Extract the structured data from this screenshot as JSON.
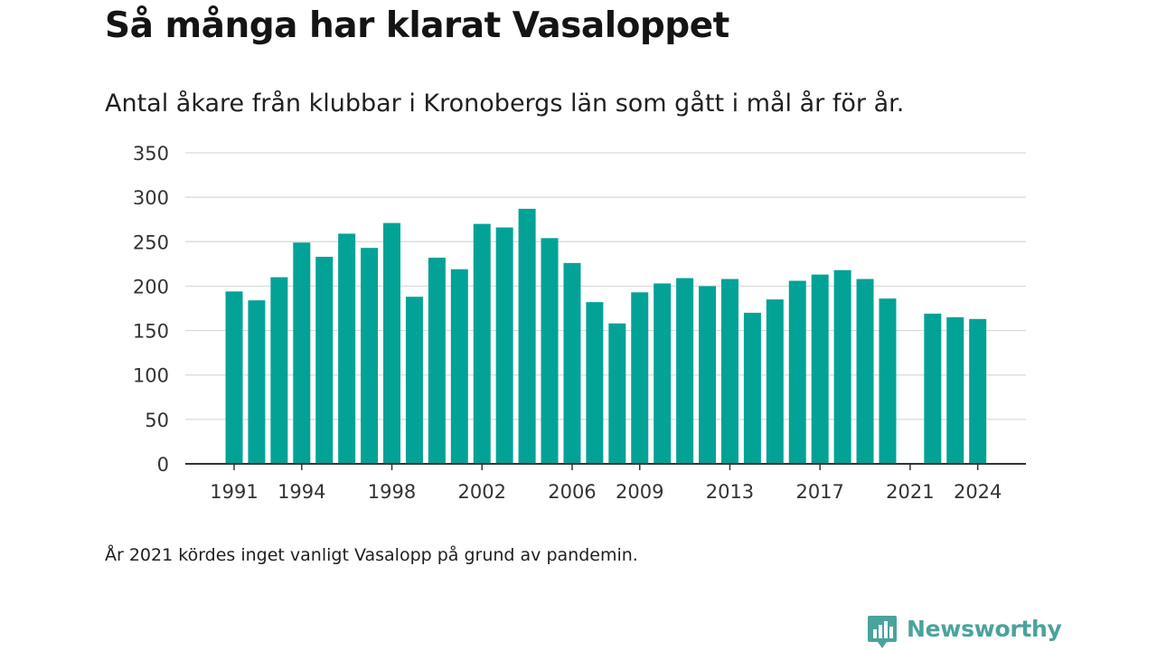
{
  "header": {
    "title": "Så många har klarat Vasaloppet",
    "subtitle": "Antal åkare från klubbar i Kronobergs län som gått i mål år för år."
  },
  "footer": {
    "note": "År 2021 kördes inget vanligt Vasalopp på grund av pandemin.",
    "brand": "Newsworthy"
  },
  "colors": {
    "bar": "#03a297",
    "grid": "#d9d9d9",
    "axis": "#333333",
    "brand": "#4aa39c"
  },
  "chart_data": {
    "type": "bar",
    "title": "Så många har klarat Vasaloppet",
    "subtitle": "Antal åkare från klubbar i Kronobergs län som gått i mål år för år.",
    "categories": [
      1991,
      1992,
      1993,
      1994,
      1995,
      1996,
      1997,
      1998,
      1999,
      2000,
      2001,
      2002,
      2003,
      2004,
      2005,
      2006,
      2007,
      2008,
      2009,
      2010,
      2011,
      2012,
      2013,
      2014,
      2015,
      2016,
      2017,
      2018,
      2019,
      2020,
      2021,
      2022,
      2023,
      2024
    ],
    "values": [
      194,
      184,
      210,
      249,
      233,
      259,
      243,
      271,
      188,
      232,
      219,
      270,
      266,
      287,
      254,
      226,
      182,
      158,
      193,
      203,
      209,
      200,
      208,
      170,
      185,
      206,
      213,
      218,
      208,
      186,
      null,
      169,
      165,
      163
    ],
    "xticks": [
      "1991",
      "1994",
      "1998",
      "2002",
      "2006",
      "2009",
      "2013",
      "2017",
      "2021",
      "2024"
    ],
    "yticks": [
      0,
      50,
      100,
      150,
      200,
      250,
      300,
      350
    ],
    "ylim": [
      0,
      350
    ],
    "xlabel": "",
    "ylabel": "",
    "grid": true,
    "legend": "none"
  }
}
